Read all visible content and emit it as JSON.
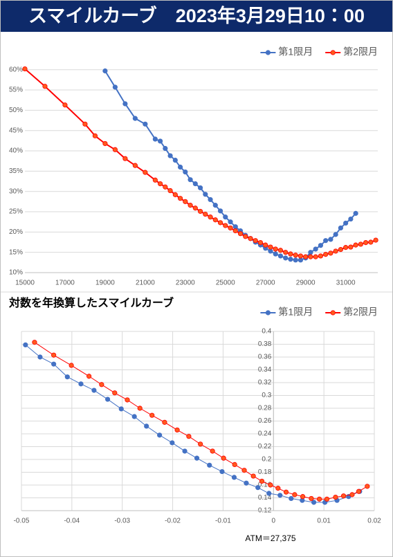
{
  "header": {
    "title": "スマイルカーブ　2023年3月29日10：00"
  },
  "chart_data": [
    {
      "type": "line",
      "legend": "upper right",
      "grid_x": false,
      "grid_y": true,
      "line_width": 2,
      "xlim": [
        15000,
        32600
      ],
      "xticks": [
        15000,
        17000,
        19000,
        21000,
        23000,
        25000,
        27000,
        29000,
        31000
      ],
      "ylim": [
        10,
        62
      ],
      "yticks": [
        {
          "value": 10,
          "label": "10%"
        },
        {
          "value": 15,
          "label": "15%"
        },
        {
          "value": 20,
          "label": "20%"
        },
        {
          "value": 25,
          "label": "25%"
        },
        {
          "value": 30,
          "label": "30%"
        },
        {
          "value": 35,
          "label": "35%"
        },
        {
          "value": 40,
          "label": "40%"
        },
        {
          "value": 45,
          "label": "45%"
        },
        {
          "value": 50,
          "label": "50%"
        },
        {
          "value": 55,
          "label": "55%"
        },
        {
          "value": 60,
          "label": "60%"
        }
      ],
      "series": [
        {
          "name": "第1限月",
          "color": "#4472c4",
          "marker": "#4472c4",
          "x": [
            19000,
            19500,
            20000,
            20500,
            21000,
            21500,
            21750,
            22000,
            22250,
            22500,
            22750,
            23000,
            23250,
            23500,
            23750,
            24000,
            24250,
            24500,
            24750,
            25000,
            25250,
            25500,
            25750,
            26000,
            26250,
            26500,
            26750,
            27000,
            27250,
            27500,
            27750,
            28000,
            28250,
            28500,
            28750,
            29000,
            29250,
            29500,
            29750,
            30000,
            30250,
            30500,
            30750,
            31000,
            31250,
            31500
          ],
          "values": [
            59.7,
            55.7,
            51.6,
            48.0,
            46.6,
            42.9,
            42.4,
            40.6,
            38.8,
            37.7,
            36.0,
            34.8,
            32.9,
            31.9,
            30.9,
            29.3,
            28.0,
            26.6,
            25.2,
            23.7,
            22.5,
            21.3,
            20.3,
            19.2,
            18.4,
            17.5,
            16.8,
            16.0,
            15.3,
            14.6,
            14.1,
            13.6,
            13.3,
            13.1,
            13.1,
            13.6,
            15.0,
            15.8,
            16.7,
            17.9,
            18.2,
            19.4,
            21.0,
            22.2,
            23.2,
            24.6
          ]
        },
        {
          "name": "第2限月",
          "color": "#ff0000",
          "marker": "#ff5a1f",
          "x": [
            15000,
            16000,
            17000,
            18000,
            18500,
            19000,
            19500,
            20000,
            20500,
            21000,
            21500,
            21750,
            22000,
            22250,
            22500,
            22750,
            23000,
            23250,
            23500,
            23750,
            24000,
            24250,
            24500,
            24750,
            25000,
            25250,
            25500,
            25750,
            26000,
            26250,
            26500,
            26750,
            27000,
            27250,
            27500,
            27750,
            28000,
            28250,
            28500,
            28750,
            29000,
            29250,
            29500,
            29750,
            30000,
            30250,
            30500,
            30750,
            31000,
            31250,
            31500,
            31750,
            32000,
            32250,
            32500
          ],
          "values": [
            60.2,
            55.9,
            51.3,
            46.6,
            43.7,
            41.8,
            40.3,
            38.1,
            36.4,
            34.7,
            32.8,
            31.9,
            31.1,
            30.2,
            29.2,
            28.3,
            27.5,
            26.6,
            25.9,
            25.1,
            24.4,
            23.7,
            23.0,
            22.3,
            21.6,
            21.0,
            20.3,
            19.6,
            18.9,
            18.4,
            17.9,
            17.4,
            16.8,
            16.3,
            15.8,
            15.5,
            15.0,
            14.6,
            14.3,
            14.1,
            13.9,
            13.9,
            13.9,
            14.1,
            14.5,
            14.8,
            15.3,
            15.7,
            16.2,
            16.3,
            16.8,
            17.0,
            17.4,
            17.5,
            18.0
          ]
        }
      ]
    },
    {
      "type": "line",
      "title": "対数を年換算したスマイルカーブ",
      "legend": "upper right",
      "grid_x": true,
      "grid_y": true,
      "line_width": 1,
      "y_axis_crosses": 0,
      "annotation": "ATM＝27,375",
      "xlim": [
        -0.05,
        0.02
      ],
      "xticks": [
        -0.05,
        -0.04,
        -0.03,
        -0.02,
        -0.01,
        0,
        0.01,
        0.02
      ],
      "ylim": [
        0.12,
        0.4
      ],
      "yticks": [
        0.12,
        0.14,
        0.16,
        0.18,
        0.2,
        0.22,
        0.24,
        0.26,
        0.28,
        0.3,
        0.32,
        0.34,
        0.36,
        0.38,
        0.4
      ],
      "series": [
        {
          "name": "第1限月",
          "color": "#4472c4",
          "marker": "#4472c4",
          "x": [
            -0.0492,
            -0.0463,
            -0.0436,
            -0.0409,
            -0.0382,
            -0.0356,
            -0.0329,
            -0.0302,
            -0.0276,
            -0.0252,
            -0.0226,
            -0.0201,
            -0.0176,
            -0.0152,
            -0.0127,
            -0.0102,
            -0.0078,
            -0.0054,
            -0.0031,
            -0.0009,
            0.0013,
            0.0035,
            0.0057,
            0.008,
            0.0102,
            0.0126,
            0.0149,
            0.0171
          ],
          "values": [
            0.379,
            0.36,
            0.349,
            0.329,
            0.318,
            0.308,
            0.294,
            0.279,
            0.267,
            0.252,
            0.238,
            0.226,
            0.213,
            0.202,
            0.191,
            0.181,
            0.172,
            0.163,
            0.156,
            0.147,
            0.144,
            0.139,
            0.136,
            0.133,
            0.133,
            0.136,
            0.142,
            0.15
          ]
        },
        {
          "name": "第2限月",
          "color": "#ff0000",
          "marker": "#ff5a1f",
          "x": [
            -0.0474,
            -0.0436,
            -0.0401,
            -0.0366,
            -0.0341,
            -0.0315,
            -0.029,
            -0.0265,
            -0.0241,
            -0.0216,
            -0.0191,
            -0.0168,
            -0.0145,
            -0.0121,
            -0.0099,
            -0.0077,
            -0.0058,
            -0.004,
            -0.0023,
            -0.0006,
            0.0009,
            0.0025,
            0.0042,
            0.0058,
            0.0075,
            0.0091,
            0.0106,
            0.0123,
            0.0139,
            0.0156,
            0.0169,
            0.0186
          ],
          "values": [
            0.383,
            0.363,
            0.347,
            0.33,
            0.317,
            0.304,
            0.293,
            0.28,
            0.269,
            0.258,
            0.246,
            0.236,
            0.224,
            0.213,
            0.202,
            0.192,
            0.183,
            0.174,
            0.166,
            0.16,
            0.155,
            0.149,
            0.145,
            0.142,
            0.139,
            0.138,
            0.138,
            0.141,
            0.143,
            0.145,
            0.15,
            0.158
          ]
        }
      ]
    }
  ]
}
